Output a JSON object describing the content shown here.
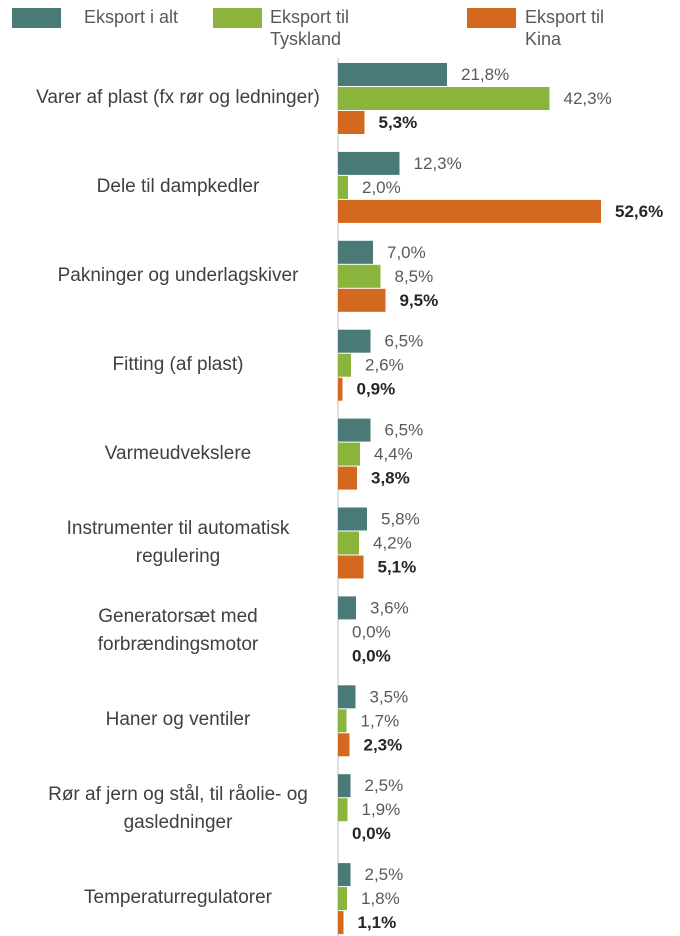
{
  "chart_data": {
    "type": "bar",
    "orientation": "horizontal",
    "categories": [
      "Varer af plast (fx rør og ledninger)",
      "Dele til dampkedler",
      "Pakninger og underlagskiver",
      "Fitting (af plast)",
      "Varmeudvekslere",
      "Instrumenter til automatisk regulering",
      "Generatorsæt med forbrændingsmotor",
      "Haner og ventiler",
      "Rør af jern og stål, til råolie- og gasledninger",
      "Temperaturregulatorer"
    ],
    "series": [
      {
        "name": "Eksport i alt",
        "color": "#4a7a78",
        "values": [
          21.8,
          12.3,
          7.0,
          6.5,
          6.5,
          5.8,
          3.6,
          3.5,
          2.5,
          2.5
        ],
        "value_labels": [
          "21,8%",
          "12,3%",
          "7,0%",
          "6,5%",
          "6,5%",
          "5,8%",
          "3,6%",
          "3,5%",
          "2,5%",
          "2,5%"
        ]
      },
      {
        "name": "Eksport til Tyskland",
        "color": "#8ab43c",
        "values": [
          42.3,
          2.0,
          8.5,
          2.6,
          4.4,
          4.2,
          0.0,
          1.7,
          1.9,
          1.8
        ],
        "value_labels": [
          "42,3%",
          "2,0%",
          "8,5%",
          "2,6%",
          "4,4%",
          "4,2%",
          "0,0%",
          "1,7%",
          "1,9%",
          "1,8%"
        ]
      },
      {
        "name": "Eksport til Kina",
        "color": "#d2691e",
        "values": [
          5.3,
          52.6,
          9.5,
          0.9,
          3.8,
          5.1,
          0.0,
          2.3,
          0.0,
          1.1
        ],
        "value_labels": [
          "5,3%",
          "52,6%",
          "9,5%",
          "0,9%",
          "3,8%",
          "5,1%",
          "0,0%",
          "2,3%",
          "0,0%",
          "1,1%"
        ]
      }
    ]
  }
}
